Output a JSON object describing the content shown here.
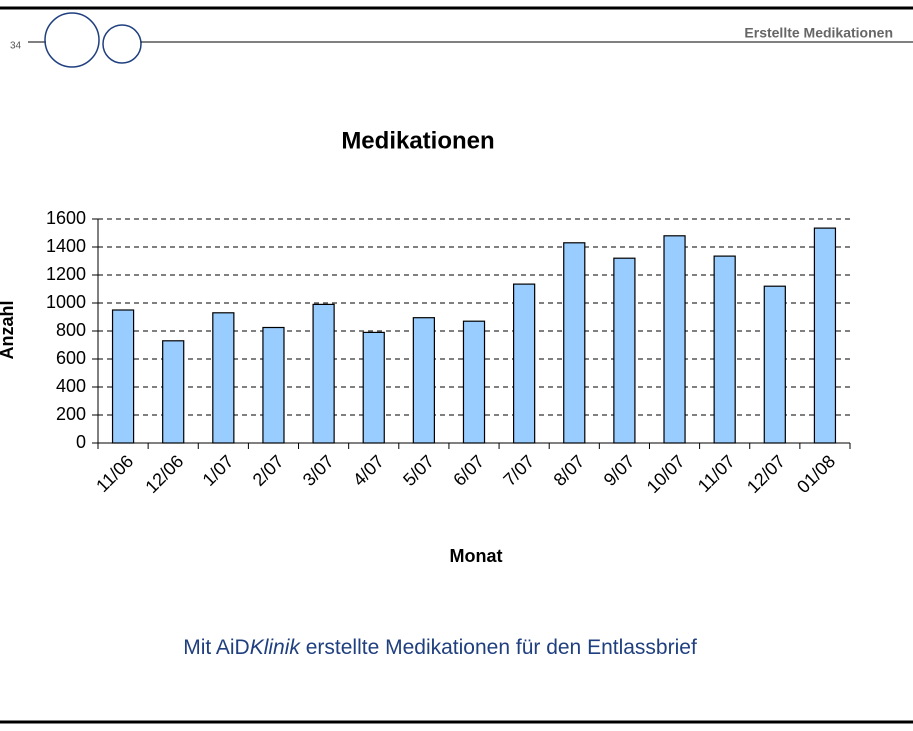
{
  "slide": {
    "page_number": "34",
    "header": "Erstellte Medikationen",
    "caption": [
      "Mit AiD",
      "Klinik",
      " erstellte Medikationen für den Entlassbrief"
    ]
  },
  "chart_data": {
    "type": "bar",
    "title": "Medikationen",
    "x_label": "Monat",
    "y_label": "Anzahl",
    "categories": [
      "11/06",
      "12/06",
      "1/07",
      "2/07",
      "3/07",
      "4/07",
      "5/07",
      "6/07",
      "7/07",
      "8/07",
      "9/07",
      "10/07",
      "11/07",
      "12/07",
      "01/08"
    ],
    "values": [
      950,
      730,
      930,
      825,
      990,
      790,
      895,
      870,
      1135,
      1430,
      1320,
      1480,
      1335,
      1120,
      1535
    ],
    "color": "#99ccff",
    "ylim": [
      0,
      1600
    ],
    "yticks": [
      0,
      200,
      400,
      600,
      800,
      1000,
      1200,
      1400,
      1600
    ],
    "grid": true
  }
}
